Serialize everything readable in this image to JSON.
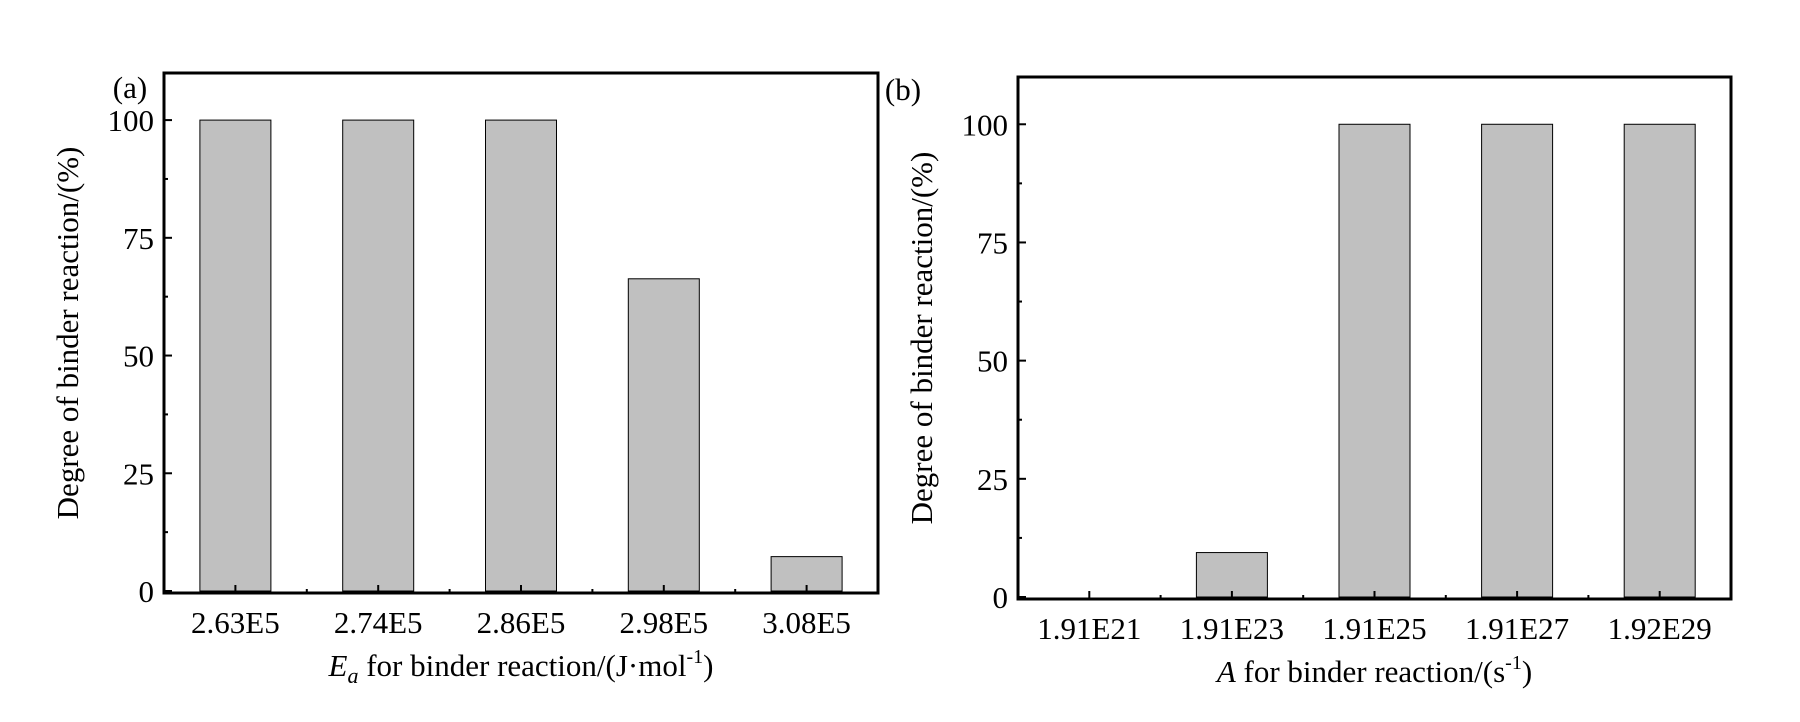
{
  "chart_data": [
    {
      "type": "bar",
      "panel_label": "(a)",
      "categories": [
        "2.63E5",
        "2.74E5",
        "2.86E5",
        "2.98E5",
        "3.08E5"
      ],
      "values": [
        100,
        100,
        100,
        66.3,
        7.3
      ],
      "xlabel_main": "E",
      "xlabel_sub": "a",
      "xlabel_rest": " for binder reaction/(J·mol",
      "xlabel_sup": "-1",
      "xlabel_end": ")",
      "ylabel": "Degree of binder reaction/(%)",
      "ylim": [
        0,
        110
      ],
      "yticks": [
        "0",
        "25",
        "50",
        "75",
        "100"
      ],
      "bar_color": "#c0c0c0",
      "grid": false
    },
    {
      "type": "bar",
      "panel_label": "(b)",
      "categories": [
        "1.91E21",
        "1.91E23",
        "1.91E25",
        "1.91E27",
        "1.92E29"
      ],
      "values": [
        0,
        9.4,
        100,
        100,
        100
      ],
      "xlabel_main": "A",
      "xlabel_sub": "",
      "xlabel_rest": " for binder reaction/(s",
      "xlabel_sup": "-1",
      "xlabel_end": ")",
      "ylabel": "Degree of binder reaction/(%)",
      "ylim": [
        0,
        110
      ],
      "yticks": [
        "0",
        "25",
        "50",
        "75",
        "100"
      ],
      "bar_color": "#c0c0c0",
      "grid": false
    }
  ]
}
